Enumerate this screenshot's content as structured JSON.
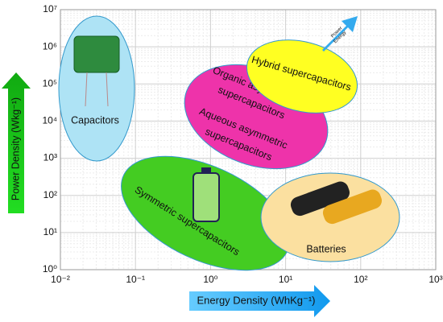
{
  "chart_data": {
    "type": "ragone",
    "x_label": "Energy Density (WhKg⁻¹)",
    "y_label": "Power Density (Wkg⁻¹)",
    "x_log": true,
    "y_log": true,
    "grid": true,
    "xlim": [
      0.01,
      1000
    ],
    "ylim": [
      1,
      10000000
    ],
    "xticks": [
      {
        "value": 0.01,
        "label": "10⁻²"
      },
      {
        "value": 0.1,
        "label": "10⁻¹"
      },
      {
        "value": 1,
        "label": "10⁰"
      },
      {
        "value": 10,
        "label": "10¹"
      },
      {
        "value": 100,
        "label": "10²"
      },
      {
        "value": 1000,
        "label": "10³"
      }
    ],
    "yticks": [
      {
        "value": 1,
        "label": "10⁰"
      },
      {
        "value": 10,
        "label": "10¹"
      },
      {
        "value": 100,
        "label": "10²"
      },
      {
        "value": 1000,
        "label": "10³"
      },
      {
        "value": 10000,
        "label": "10⁴"
      },
      {
        "value": 100000,
        "label": "10⁵"
      },
      {
        "value": 1000000,
        "label": "10⁶"
      },
      {
        "value": 10000000,
        "label": "10⁷"
      }
    ],
    "regions": [
      {
        "name": [
          "Capacitors"
        ],
        "color": "#aee3f5"
      },
      {
        "name": [
          "Symmetric supercapacitors"
        ],
        "color": "#44cc22"
      },
      {
        "name": [
          "Organic asymmetric",
          "supercapacitors"
        ],
        "color": "#ee33aa"
      },
      {
        "name": [
          "Aqueous asymmetric",
          "supercapacitors"
        ],
        "color": "#ee33aa"
      },
      {
        "name": [
          "Hybrid supercapacitors"
        ],
        "color": "#ffff22"
      },
      {
        "name": [
          "Batteries"
        ],
        "color": "#fbe0a0"
      }
    ],
    "annotation": [
      "Power",
      "Energy"
    ]
  }
}
